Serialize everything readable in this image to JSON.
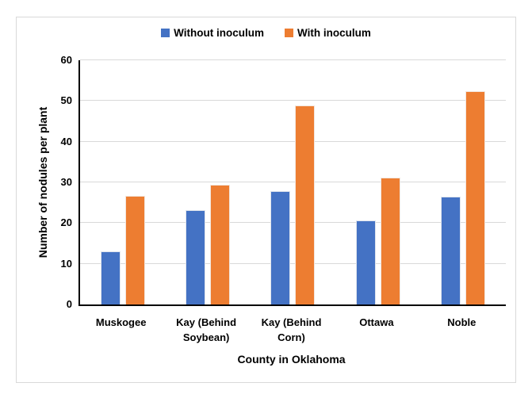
{
  "chart_data": {
    "type": "bar",
    "title": "",
    "categories": [
      "Muskogee",
      "Kay (Behind Soybean)",
      "Kay (Behind Corn)",
      "Ottawa",
      "Noble"
    ],
    "series": [
      {
        "name": "Without inoculum",
        "color": "#4472C4",
        "values": [
          13.0,
          23.1,
          27.8,
          20.6,
          26.5
        ]
      },
      {
        "name": "With inoculum",
        "color": "#ED7D31",
        "values": [
          26.6,
          29.4,
          48.9,
          31.2,
          52.4
        ]
      }
    ],
    "xlabel": "County in Oklahoma",
    "ylabel": "Number of nodules per plant",
    "ylim": [
      0,
      60
    ],
    "yticks": [
      0,
      10,
      20,
      30,
      40,
      50,
      60
    ],
    "grid": "horizontal",
    "legend_position": "top-center"
  },
  "colors": {
    "series_blue": "#4472C4",
    "series_orange": "#ED7D31",
    "gridline": "#D9D9D9",
    "axis_line": "#000000",
    "frame_border": "#D9D9D9",
    "text": "#000000",
    "background": "#FFFFFF"
  }
}
